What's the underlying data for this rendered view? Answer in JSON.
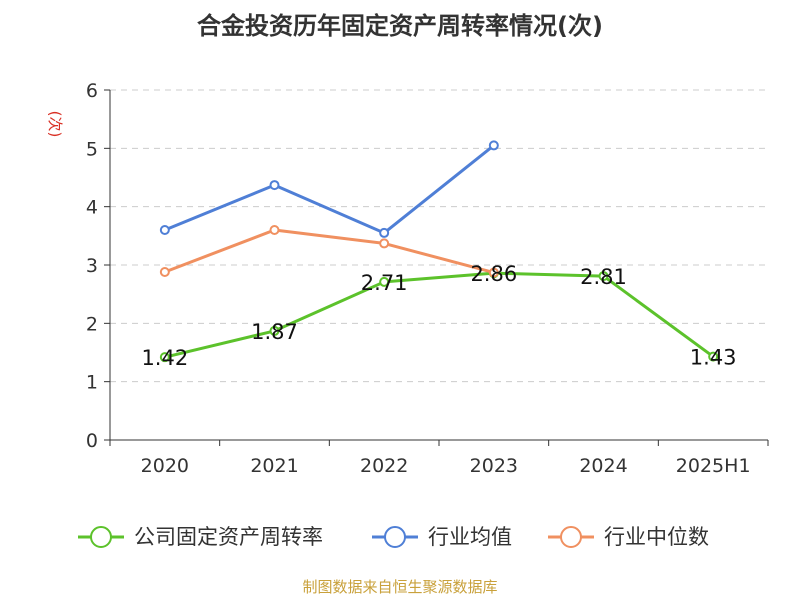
{
  "chart_data": {
    "type": "line",
    "title": "合金投资历年固定资产周转率情况(次)",
    "ylabel": "(次)",
    "xlabel": "",
    "categories": [
      "2020",
      "2021",
      "2022",
      "2023",
      "2024",
      "2025H1"
    ],
    "ylim": [
      0,
      6
    ],
    "yticks": [
      0,
      1,
      2,
      3,
      4,
      5,
      6
    ],
    "grid": true,
    "legend_position": "bottom",
    "series": [
      {
        "name": "公司固定资产周转率",
        "color": "#5cc22b",
        "values": [
          1.42,
          1.87,
          2.71,
          2.86,
          2.81,
          1.43
        ],
        "labels": [
          "1.42",
          "1.87",
          "2.71",
          "2.86",
          "2.81",
          "1.43"
        ]
      },
      {
        "name": "行业均值",
        "color": "#4f7fd6",
        "values": [
          3.6,
          4.37,
          3.55,
          5.05,
          null,
          null
        ],
        "labels": []
      },
      {
        "name": "行业中位数",
        "color": "#f09060",
        "values": [
          2.88,
          3.6,
          3.37,
          2.87,
          null,
          null
        ],
        "labels": []
      }
    ]
  },
  "source": "制图数据来自恒生聚源数据库"
}
